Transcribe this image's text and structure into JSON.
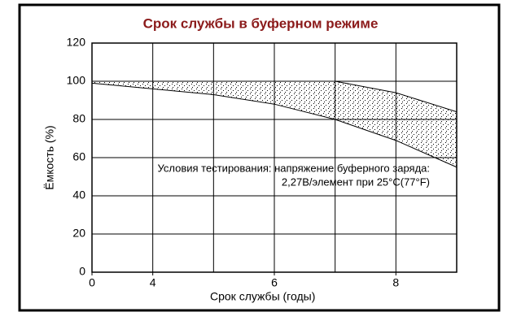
{
  "chart_data": {
    "type": "area_band",
    "title": "Срок службы в буферном режиме",
    "xlabel": "Срок службы (годы)",
    "ylabel": "Ёмкость (%)",
    "annotation": [
      "Условия тестирования: напряжение буферного заряда:",
      "2,27В/элемент при 25°C(77°F)"
    ],
    "band": {
      "x": [
        0,
        4,
        5,
        6,
        7,
        8,
        9
      ],
      "upper": [
        100,
        100,
        100,
        100,
        100,
        94,
        84
      ],
      "lower": [
        99,
        96,
        93,
        88,
        80,
        69,
        55
      ]
    },
    "color": "#000000",
    "xlim": [
      0,
      9
    ],
    "x_break": [
      0,
      4
    ],
    "xticks": [
      0,
      4,
      6,
      8
    ],
    "xgrid": [
      4,
      5,
      6,
      7,
      8
    ],
    "ylim": [
      0,
      120
    ],
    "yticks": [
      0,
      20,
      40,
      60,
      80,
      100,
      120
    ],
    "grid": true
  }
}
